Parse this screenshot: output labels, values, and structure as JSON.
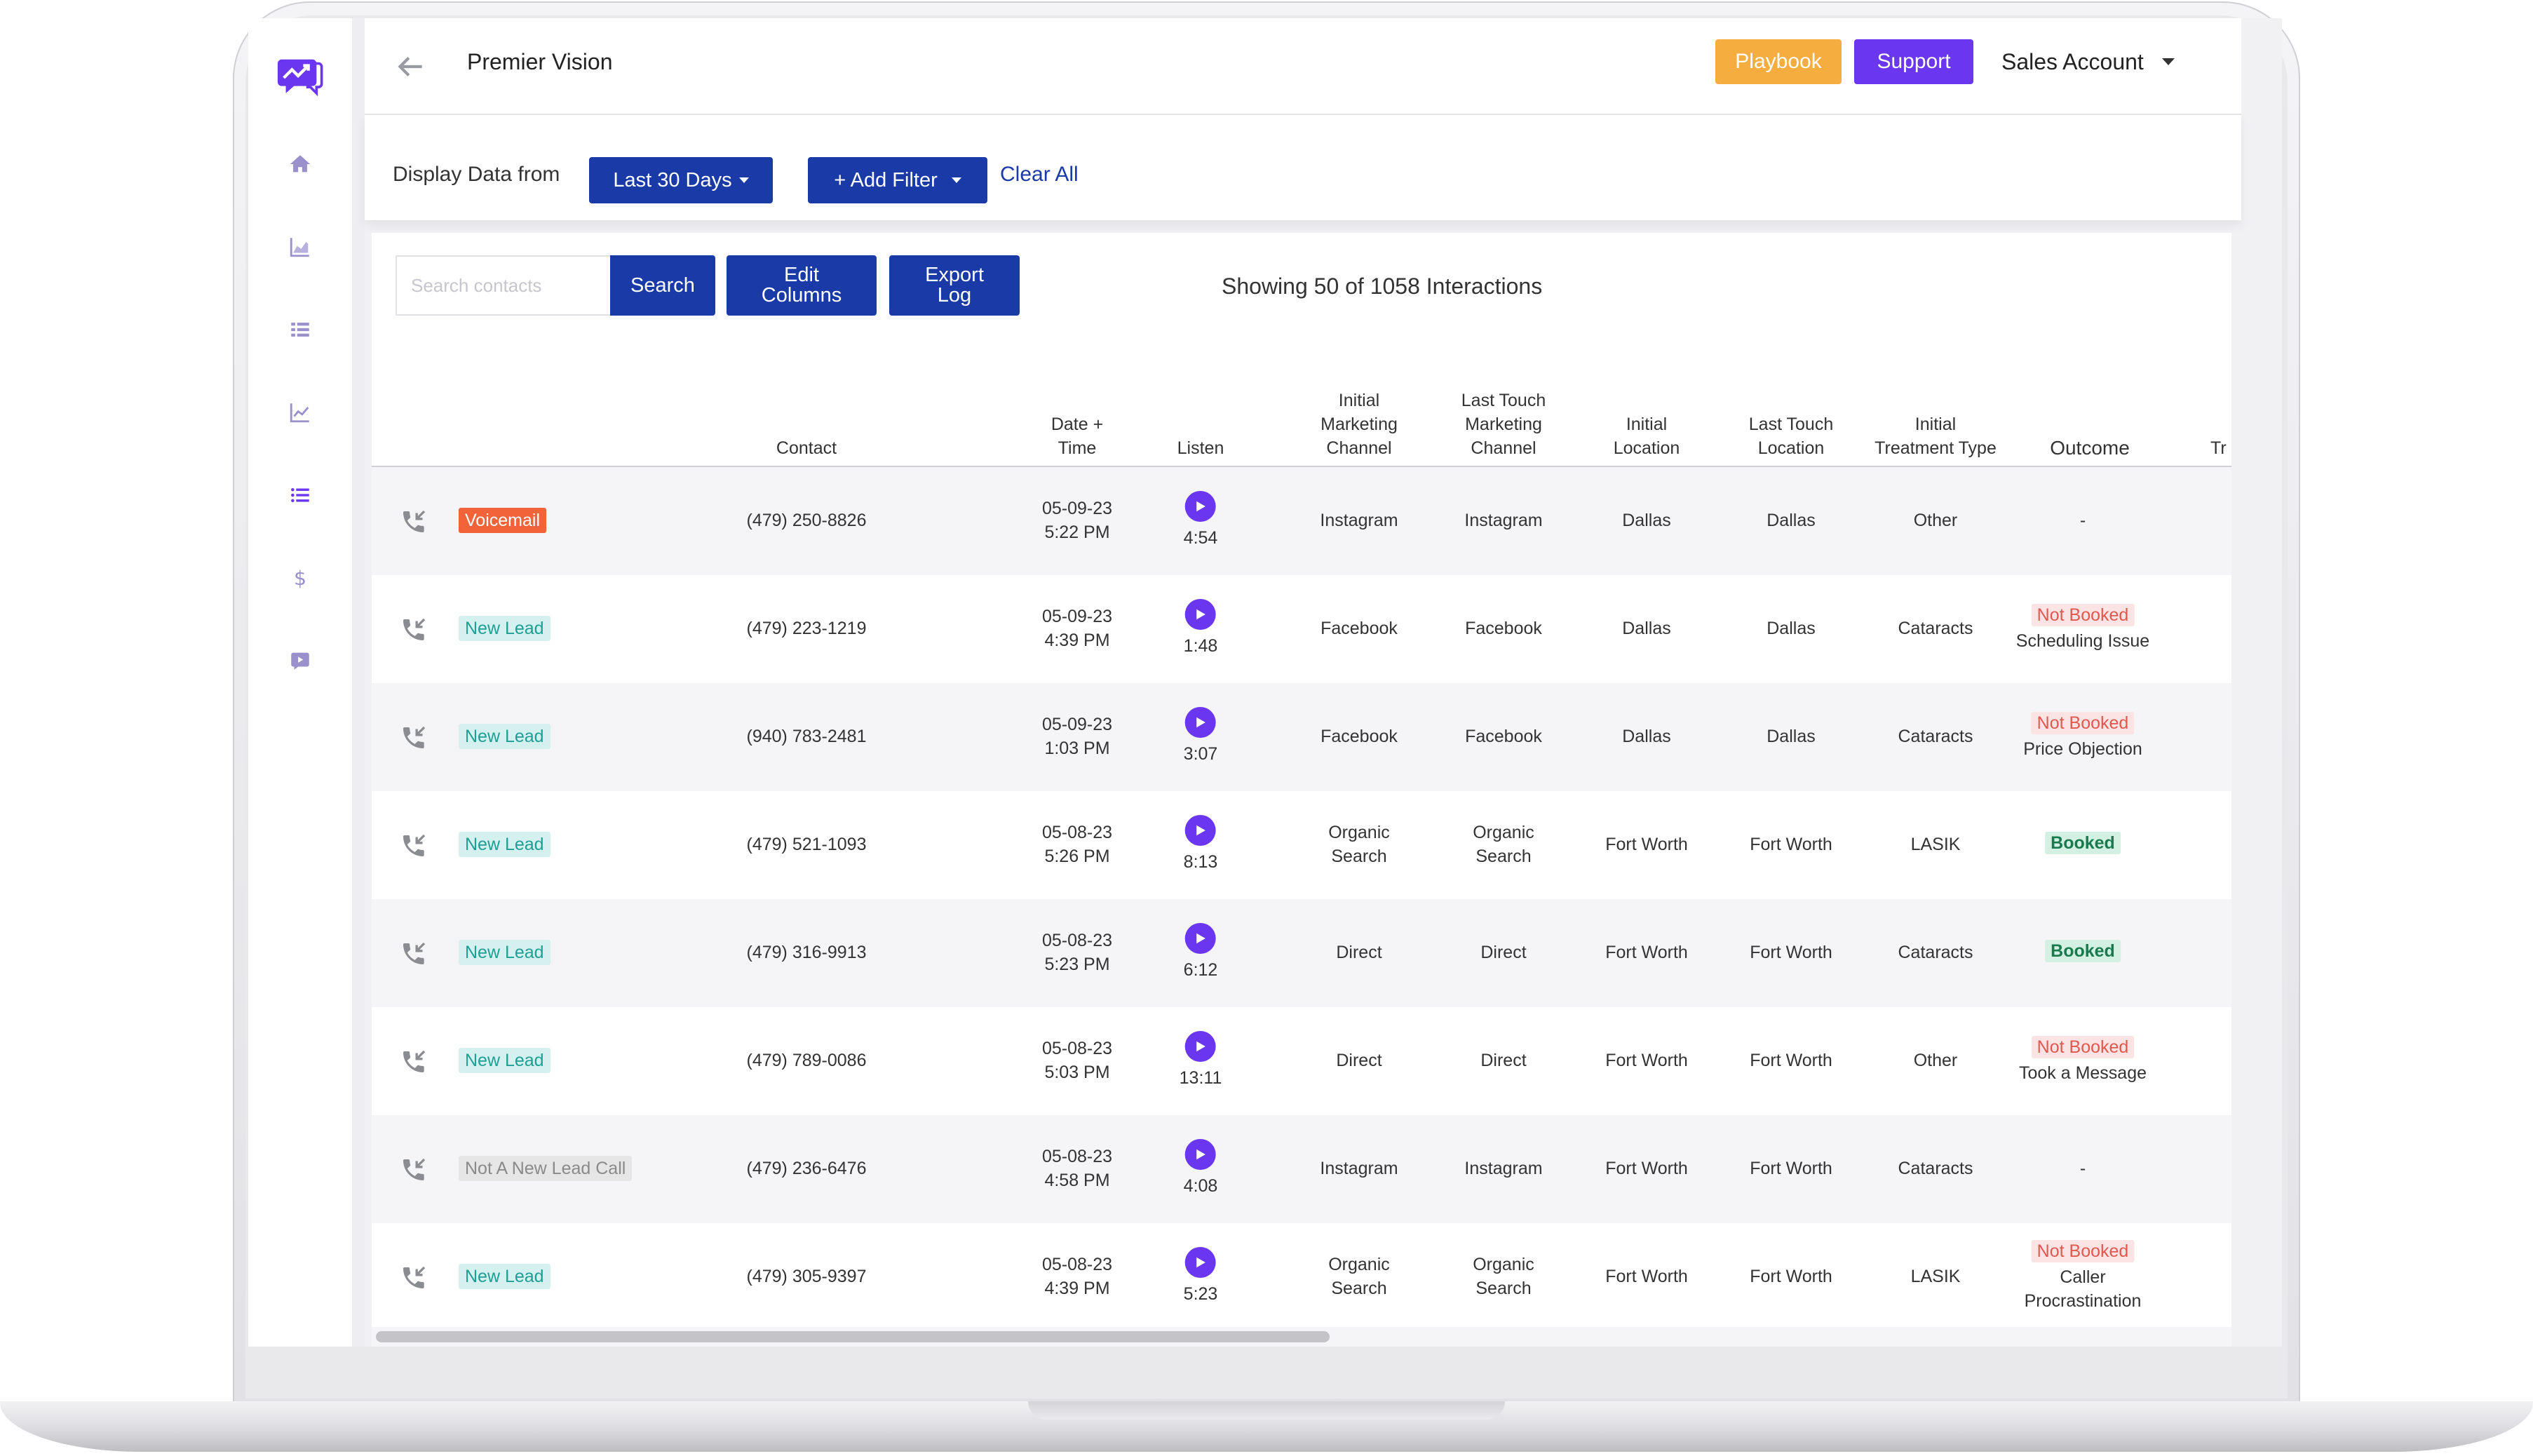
{
  "app": {
    "title": "Premier Vision"
  },
  "header": {
    "playbook_label": "Playbook",
    "support_label": "Support",
    "account_label": "Sales Account"
  },
  "filters": {
    "display_label": "Display Data from",
    "range_label": "Last 30 Days",
    "add_filter_label": "+ Add Filter",
    "clear_all_label": "Clear All"
  },
  "toolbar": {
    "search_placeholder": "Search contacts",
    "search_label": "Search",
    "edit_columns_label": "Edit\nColumns",
    "export_log_label": "Export\nLog",
    "showing_text": "Showing 50 of 1058 Interactions"
  },
  "sidebar": {
    "items": [
      {
        "icon": "home-icon"
      },
      {
        "icon": "area-chart-icon"
      },
      {
        "icon": "list-icon"
      },
      {
        "icon": "line-chart-icon"
      },
      {
        "icon": "list-active-icon"
      },
      {
        "icon": "dollar-icon"
      },
      {
        "icon": "video-icon"
      }
    ]
  },
  "table": {
    "columns": [
      {
        "key": "contact",
        "label": "Contact"
      },
      {
        "key": "datetime",
        "label": "Date +\nTime"
      },
      {
        "key": "listen",
        "label": "Listen"
      },
      {
        "key": "initial_channel",
        "label": "Initial\nMarketing\nChannel"
      },
      {
        "key": "last_channel",
        "label": "Last Touch\nMarketing\nChannel"
      },
      {
        "key": "initial_location",
        "label": "Initial\nLocation"
      },
      {
        "key": "last_location",
        "label": "Last Touch\nLocation"
      },
      {
        "key": "treatment",
        "label": "Initial\nTreatment Type"
      },
      {
        "key": "outcome",
        "label": "Outcome"
      },
      {
        "key": "more",
        "label": "Tr"
      }
    ],
    "rows": [
      {
        "type": "Voicemail",
        "type_kind": "voicemail",
        "contact": "(479) 250-8826",
        "date": "05-09-23",
        "time": "5:22 PM",
        "duration": "4:54",
        "initial_channel": "Instagram",
        "last_channel": "Instagram",
        "initial_location": "Dallas",
        "last_location": "Dallas",
        "treatment": "Other",
        "outcome": "",
        "outcome_kind": "none",
        "outcome_detail": "-"
      },
      {
        "type": "New Lead",
        "type_kind": "newlead",
        "contact": "(479) 223-1219",
        "date": "05-09-23",
        "time": "4:39 PM",
        "duration": "1:48",
        "initial_channel": "Facebook",
        "last_channel": "Facebook",
        "initial_location": "Dallas",
        "last_location": "Dallas",
        "treatment": "Cataracts",
        "outcome": "Not Booked",
        "outcome_kind": "notbooked",
        "outcome_detail": "Scheduling Issue"
      },
      {
        "type": "New Lead",
        "type_kind": "newlead",
        "contact": "(940) 783-2481",
        "date": "05-09-23",
        "time": "1:03 PM",
        "duration": "3:07",
        "initial_channel": "Facebook",
        "last_channel": "Facebook",
        "initial_location": "Dallas",
        "last_location": "Dallas",
        "treatment": "Cataracts",
        "outcome": "Not Booked",
        "outcome_kind": "notbooked",
        "outcome_detail": "Price Objection"
      },
      {
        "type": "New Lead",
        "type_kind": "newlead",
        "contact": "(479) 521-1093",
        "date": "05-08-23",
        "time": "5:26 PM",
        "duration": "8:13",
        "initial_channel": "Organic\nSearch",
        "last_channel": "Organic\nSearch",
        "initial_location": "Fort Worth",
        "last_location": "Fort Worth",
        "treatment": "LASIK",
        "outcome": "Booked",
        "outcome_kind": "booked",
        "outcome_detail": ""
      },
      {
        "type": "New Lead",
        "type_kind": "newlead",
        "contact": "(479) 316-9913",
        "date": "05-08-23",
        "time": "5:23 PM",
        "duration": "6:12",
        "initial_channel": "Direct",
        "last_channel": "Direct",
        "initial_location": "Fort Worth",
        "last_location": "Fort Worth",
        "treatment": "Cataracts",
        "outcome": "Booked",
        "outcome_kind": "booked",
        "outcome_detail": ""
      },
      {
        "type": "New Lead",
        "type_kind": "newlead",
        "contact": "(479) 789-0086",
        "date": "05-08-23",
        "time": "5:03 PM",
        "duration": "13:11",
        "initial_channel": "Direct",
        "last_channel": "Direct",
        "initial_location": "Fort Worth",
        "last_location": "Fort Worth",
        "treatment": "Other",
        "outcome": "Not Booked",
        "outcome_kind": "notbooked",
        "outcome_detail": "Took a Message"
      },
      {
        "type": "Not A New Lead Call",
        "type_kind": "notlead",
        "contact": "(479) 236-6476",
        "date": "05-08-23",
        "time": "4:58 PM",
        "duration": "4:08",
        "initial_channel": "Instagram",
        "last_channel": "Instagram",
        "initial_location": "Fort Worth",
        "last_location": "Fort Worth",
        "treatment": "Cataracts",
        "outcome": "",
        "outcome_kind": "none",
        "outcome_detail": "-"
      },
      {
        "type": "New Lead",
        "type_kind": "newlead",
        "contact": "(479) 305-9397",
        "date": "05-08-23",
        "time": "4:39 PM",
        "duration": "5:23",
        "initial_channel": "Organic\nSearch",
        "last_channel": "Organic\nSearch",
        "initial_location": "Fort Worth",
        "last_location": "Fort Worth",
        "treatment": "LASIK",
        "outcome": "Not Booked",
        "outcome_kind": "notbooked",
        "outcome_detail": "Caller\nProcrastination"
      }
    ]
  },
  "colors": {
    "accent_purple": "#6a36f0",
    "navy": "#1a3aa7",
    "playbook_orange": "#f6ad40",
    "voicemail_bg": "#f2633a",
    "newlead_bg": "#d5f1ef",
    "newlead_fg": "#1f9e95",
    "notlead_bg": "#e6e6e6",
    "notlead_fg": "#8a8a8a"
  }
}
